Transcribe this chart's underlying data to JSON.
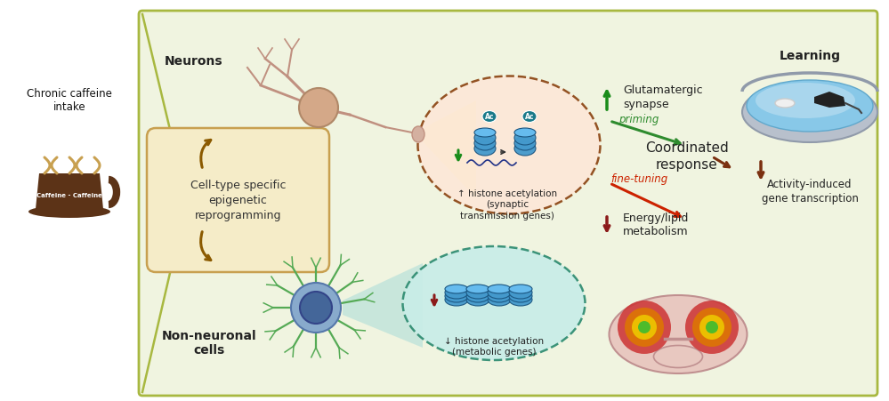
{
  "bg_color": "#f0f4e0",
  "outer_bg": "#ffffff",
  "border_color": "#a8b840",
  "left_label": "Chronic caffeine\nintake",
  "left_caffeine_color": "#5c3317",
  "left_steam_color": "#c8a050",
  "epigenetic_box_text": "Cell-type specific\nepigenetic\nreprogramming",
  "epigenetic_box_color": "#f5ecc8",
  "epigenetic_border_color": "#c8a050",
  "neuron_label": "Neurons",
  "non_neuronal_label": "Non-neuronal\ncells",
  "upper_ellipse_facecolor": "#fde8d8",
  "upper_ellipse_border": "#8b4513",
  "lower_ellipse_facecolor": "#c8ede8",
  "lower_ellipse_border": "#2e8b70",
  "upper_cone_color": "#f5e878",
  "lower_cone_color": "#a8dbd8",
  "upper_histone_text": "↑ histone acetylation\n(synaptic\ntransmission genes)",
  "lower_histone_text": "↓ histone acetylation\n(metabolic genes)",
  "upper_green": "#1a8c1a",
  "lower_red": "#8b1a1a",
  "glutamatergic_text": "Glutamatergic\nsynapse",
  "energy_text": "Energy/lipid\nmetabolism",
  "priming_text": "priming",
  "priming_color": "#2e8b2e",
  "fine_tuning_text": "fine-tuning",
  "fine_tuning_color": "#cc2200",
  "coordinated_text": "Coordinated\nresponse",
  "learning_text": "Learning",
  "activity_text": "Activity-induced\ngene transcription",
  "activity_arrow_color": "#7b3010",
  "neuron_color": "#c09080",
  "neuron_axon_color": "#c09080",
  "nonneuron_soma_color": "#446699",
  "nonneuron_process_color": "#55aa55",
  "ac_bg_color": "#1a7a8a",
  "histone_color": "#4499cc",
  "brown_arrow_color": "#8b5a00"
}
